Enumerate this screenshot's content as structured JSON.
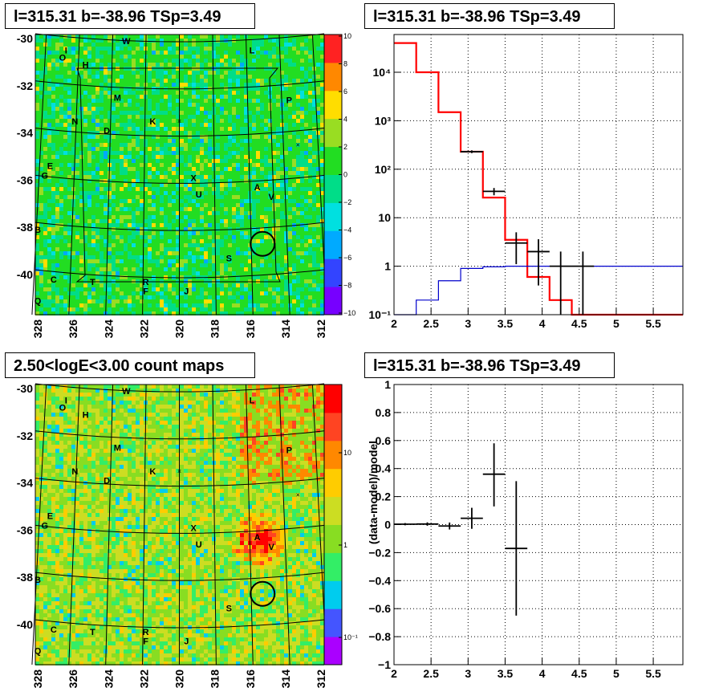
{
  "titles": {
    "map1": "l=315.31 b=-38.96 TSp=3.49",
    "spectrum": "l=315.31 b=-38.96 TSp=3.49",
    "map2": "2.50<logE<3.00 count maps",
    "residual": "l=315.31 b=-38.96 TSp=3.49"
  },
  "colors": {
    "model_hist": "#ff0000",
    "background_hist": "#0000cc",
    "data_points": "#000000",
    "ts_cmap": [
      "#7700ff",
      "#3344ff",
      "#00aaff",
      "#00e0e0",
      "#00dd88",
      "#22dd22",
      "#99dd22",
      "#ffdd00",
      "#ff8800",
      "#ff2222"
    ],
    "count_cmap": [
      "#aa00ff",
      "#4455ff",
      "#00ccee",
      "#33ee66",
      "#88dd22",
      "#ccdd22",
      "#ffcc00",
      "#ff8800",
      "#ff4422",
      "#ff0000"
    ]
  },
  "source_labels": [
    {
      "t": "W",
      "glon": 323.0,
      "glat": -30.1
    },
    {
      "t": "I",
      "glon": 326.4,
      "glat": -30.5
    },
    {
      "t": "O",
      "glon": 326.6,
      "glat": -30.8
    },
    {
      "t": "H",
      "glon": 325.3,
      "glat": -31.1
    },
    {
      "t": "L",
      "glon": 315.9,
      "glat": -30.5
    },
    {
      "t": "M",
      "glon": 323.5,
      "glat": -32.5
    },
    {
      "t": "P",
      "glon": 313.8,
      "glat": -32.6
    },
    {
      "t": "K",
      "glon": 321.5,
      "glat": -33.5
    },
    {
      "t": "N",
      "glon": 325.9,
      "glat": -33.5
    },
    {
      "t": "D",
      "glon": 324.1,
      "glat": -33.9
    },
    {
      "t": "E",
      "glon": 327.3,
      "glat": -35.4
    },
    {
      "t": "G",
      "glon": 327.6,
      "glat": -35.8
    },
    {
      "t": "X",
      "glon": 319.2,
      "glat": -35.9
    },
    {
      "t": "U",
      "glon": 318.9,
      "glat": -36.6
    },
    {
      "t": "A",
      "glon": 315.6,
      "glat": -36.3
    },
    {
      "t": "V",
      "glon": 314.8,
      "glat": -36.7
    },
    {
      "t": "B",
      "glon": 328.0,
      "glat": -38.1
    },
    {
      "t": "S",
      "glon": 317.2,
      "glat": -39.3
    },
    {
      "t": "C",
      "glon": 327.1,
      "glat": -40.2
    },
    {
      "t": "T",
      "glon": 324.9,
      "glat": -40.3
    },
    {
      "t": "R",
      "glon": 321.9,
      "glat": -40.3
    },
    {
      "t": "F",
      "glon": 321.9,
      "glat": -40.7
    },
    {
      "t": "J",
      "glon": 319.6,
      "glat": -40.7
    },
    {
      "t": "Q",
      "glon": 328.0,
      "glat": -41.1
    }
  ],
  "map1": {
    "xticks": [
      "328",
      "326",
      "324",
      "322",
      "320",
      "318",
      "316",
      "314",
      "312"
    ],
    "yticks": [
      "-30",
      "-32",
      "-34",
      "-36",
      "-38",
      "-40"
    ],
    "colorbar_ticks": [
      "10",
      "8",
      "6",
      "4",
      "2",
      "0",
      "−2",
      "−4",
      "−6",
      "−8",
      "−10"
    ]
  },
  "map2": {
    "xticks": [
      "328",
      "326",
      "324",
      "322",
      "320",
      "318",
      "316",
      "314",
      "312"
    ],
    "yticks": [
      "-30",
      "-32",
      "-34",
      "-36",
      "-38",
      "-40"
    ],
    "colorbar_ticks": [
      "10",
      "1",
      "10⁻¹"
    ]
  },
  "chart_data": [
    {
      "type": "line",
      "panel": "spectrum",
      "title": "l=315.31 b=-38.96 TSp=3.49",
      "xlim": [
        2,
        5.9
      ],
      "ylim": [
        0.1,
        60000
      ],
      "yscale": "log",
      "grid": true,
      "xticks": [
        "2",
        "2.5",
        "3",
        "3.5",
        "4",
        "4.5",
        "5",
        "5.5"
      ],
      "yticks": [
        "10⁻¹",
        "1",
        "10",
        "10²",
        "10³",
        "10⁴"
      ],
      "series": [
        {
          "kind": "step",
          "color": "red",
          "edges": [
            2.0,
            2.3,
            2.6,
            2.9,
            3.2,
            3.5,
            3.8,
            4.1,
            4.4,
            4.7,
            5.0,
            5.3,
            5.6,
            5.9
          ],
          "values": [
            40000,
            10000,
            1500,
            230,
            26,
            3.5,
            0.6,
            0.2,
            0.1,
            0.1,
            0.1,
            0.1,
            0.1
          ]
        },
        {
          "kind": "step",
          "color": "blue",
          "edges": [
            2.0,
            2.3,
            2.6,
            2.9,
            3.2,
            3.5,
            3.8,
            4.1,
            4.4,
            4.7,
            5.0,
            5.3,
            5.6,
            5.9
          ],
          "values": [
            0.09,
            0.2,
            0.5,
            0.9,
            0.97,
            1.0,
            1.0,
            1.0,
            1.0,
            1.0,
            1.0,
            1.0,
            1.0
          ]
        },
        {
          "kind": "points",
          "color": "black",
          "points": [
            {
              "x": 3.05,
              "y": 230,
              "xlo": 2.9,
              "xhi": 3.2,
              "ylo": 215,
              "yhi": 245
            },
            {
              "x": 3.35,
              "y": 35,
              "xlo": 3.2,
              "xhi": 3.5,
              "ylo": 29,
              "yhi": 41
            },
            {
              "x": 3.65,
              "y": 3,
              "xlo": 3.5,
              "xhi": 3.8,
              "ylo": 1.1,
              "yhi": 5
            },
            {
              "x": 3.95,
              "y": 2,
              "xlo": 3.8,
              "xhi": 4.1,
              "ylo": 0.4,
              "yhi": 3.6
            },
            {
              "x": 4.25,
              "y": 1,
              "xlo": 4.1,
              "xhi": 4.4,
              "ylo": 0.08,
              "yhi": 2
            },
            {
              "x": 4.55,
              "y": 1,
              "xlo": 4.4,
              "xhi": 4.7,
              "ylo": 0.08,
              "yhi": 2
            }
          ]
        }
      ]
    },
    {
      "type": "scatter",
      "panel": "residual",
      "title": "l=315.31 b=-38.96 TSp=3.49",
      "ylabel": "(data-model)/model",
      "xlim": [
        2,
        5.9
      ],
      "ylim": [
        -1,
        1
      ],
      "grid": true,
      "xticks": [
        "2",
        "2.5",
        "3",
        "3.5",
        "4",
        "4.5",
        "5",
        "5.5"
      ],
      "yticks": [
        "1",
        "0.8",
        "0.6",
        "0.4",
        "0.2",
        "0",
        "−0.2",
        "−0.4",
        "−0.6",
        "−0.8",
        "−1"
      ],
      "points": [
        {
          "x": 2.15,
          "y": 0.003,
          "xlo": 2.0,
          "xhi": 2.3,
          "ylo": -0.005,
          "yhi": 0.011
        },
        {
          "x": 2.45,
          "y": 0.004,
          "xlo": 2.3,
          "xhi": 2.6,
          "ylo": -0.008,
          "yhi": 0.016
        },
        {
          "x": 2.75,
          "y": -0.01,
          "xlo": 2.6,
          "xhi": 2.9,
          "ylo": -0.035,
          "yhi": 0.015
        },
        {
          "x": 3.05,
          "y": 0.045,
          "xlo": 2.9,
          "xhi": 3.2,
          "ylo": -0.03,
          "yhi": 0.12
        },
        {
          "x": 3.35,
          "y": 0.36,
          "xlo": 3.2,
          "xhi": 3.5,
          "ylo": 0.13,
          "yhi": 0.58
        },
        {
          "x": 3.65,
          "y": -0.17,
          "xlo": 3.5,
          "xhi": 3.8,
          "ylo": -0.65,
          "yhi": 0.31
        }
      ]
    }
  ]
}
